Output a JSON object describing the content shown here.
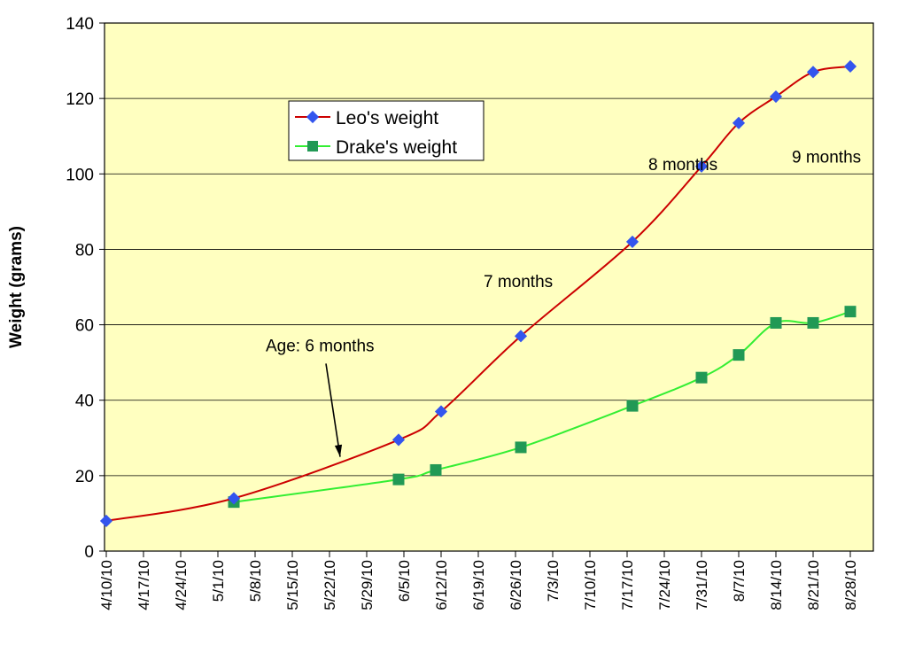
{
  "chart_data": {
    "type": "line",
    "title": "",
    "xlabel": "",
    "ylabel": "Weight (grams)",
    "ylim": [
      0,
      140
    ],
    "yticks": [
      0,
      20,
      40,
      60,
      80,
      100,
      120,
      140
    ],
    "xlim": [
      "4/10/10",
      "9/1/10"
    ],
    "xticks": [
      "4/10/10",
      "4/17/10",
      "4/24/10",
      "5/1/10",
      "5/8/10",
      "5/15/10",
      "5/22/10",
      "5/29/10",
      "6/5/10",
      "6/12/10",
      "6/19/10",
      "6/26/10",
      "7/3/10",
      "7/10/10",
      "7/17/10",
      "7/24/10",
      "7/31/10",
      "8/7/10",
      "8/14/10",
      "8/21/10",
      "8/28/10"
    ],
    "grid": "horizontal",
    "legend_position": "upper-left",
    "plot_background": "#FFFFC0",
    "series": [
      {
        "name": "Leo's weight",
        "color": "#CC0000",
        "marker": "diamond",
        "marker_color": "#3355EE",
        "points": [
          {
            "x": "4/10/10",
            "y": 8
          },
          {
            "x": "5/4/10",
            "y": 14
          },
          {
            "x": "6/4/10",
            "y": 29.5
          },
          {
            "x": "6/12/10",
            "y": 37
          },
          {
            "x": "6/27/10",
            "y": 57
          },
          {
            "x": "7/18/10",
            "y": 82
          },
          {
            "x": "7/31/10",
            "y": 102
          },
          {
            "x": "8/7/10",
            "y": 113.5
          },
          {
            "x": "8/14/10",
            "y": 120.5
          },
          {
            "x": "8/21/10",
            "y": 127
          },
          {
            "x": "8/28/10",
            "y": 128.5
          }
        ]
      },
      {
        "name": "Drake's weight",
        "color": "#33EE33",
        "marker": "square",
        "marker_color": "#229955",
        "points": [
          {
            "x": "5/4/10",
            "y": 13
          },
          {
            "x": "6/4/10",
            "y": 19
          },
          {
            "x": "6/11/10",
            "y": 21.5
          },
          {
            "x": "6/27/10",
            "y": 27.5
          },
          {
            "x": "7/18/10",
            "y": 38.5
          },
          {
            "x": "7/31/10",
            "y": 46
          },
          {
            "x": "8/7/10",
            "y": 52
          },
          {
            "x": "8/14/10",
            "y": 60.5
          },
          {
            "x": "8/21/10",
            "y": 60.5
          },
          {
            "x": "8/28/10",
            "y": 63.5
          }
        ]
      }
    ],
    "annotations": [
      {
        "text": "Age: 6 months",
        "x": "5/10/10",
        "y": 53,
        "arrow_to": {
          "x": "5/24/10",
          "y": 25
        }
      },
      {
        "text": "7 months",
        "x": "6/20/10",
        "y": 70
      },
      {
        "text": "8 months",
        "x": "7/21/10",
        "y": 101
      },
      {
        "text": "9 months",
        "x": "8/17/10",
        "y": 103
      }
    ]
  }
}
